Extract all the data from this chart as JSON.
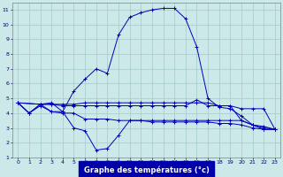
{
  "bg_color": "#cce8e8",
  "grid_color": "#aacece",
  "line_color": "#0000bb",
  "xlabel": "Graphe des températures (°c)",
  "xlim": [
    -0.5,
    23.5
  ],
  "ylim": [
    1,
    11.5
  ],
  "xticks": [
    0,
    1,
    2,
    3,
    4,
    5,
    6,
    7,
    8,
    9,
    10,
    11,
    12,
    13,
    14,
    15,
    16,
    17,
    18,
    19,
    20,
    21,
    22,
    23
  ],
  "yticks": [
    1,
    2,
    3,
    4,
    5,
    6,
    7,
    8,
    9,
    10,
    11
  ],
  "series": [
    {
      "x": [
        0,
        1,
        2,
        3,
        4,
        5,
        6,
        7,
        8,
        9,
        10,
        11,
        12,
        13,
        14,
        15,
        16,
        17,
        18,
        19,
        20,
        21,
        22,
        23
      ],
      "y": [
        4.7,
        4.0,
        4.6,
        4.7,
        4.1,
        5.5,
        6.3,
        7.0,
        6.7,
        9.3,
        10.5,
        10.8,
        11.0,
        11.1,
        11.1,
        10.4,
        8.5,
        5.0,
        4.4,
        4.3,
        3.8,
        3.2,
        2.9,
        2.9
      ],
      "marker": true
    },
    {
      "x": [
        0,
        2,
        3,
        4,
        5,
        6,
        7,
        8,
        9,
        10,
        11,
        12,
        13,
        14,
        15,
        16,
        17,
        18,
        19,
        20,
        21,
        22,
        23
      ],
      "y": [
        4.7,
        4.6,
        4.6,
        4.6,
        4.6,
        4.7,
        4.7,
        4.7,
        4.7,
        4.7,
        4.7,
        4.7,
        4.7,
        4.7,
        4.7,
        4.7,
        4.7,
        4.5,
        4.5,
        4.3,
        4.3,
        4.3,
        2.9
      ],
      "marker": true
    },
    {
      "x": [
        0,
        2,
        3,
        4,
        5,
        6,
        7,
        8,
        9,
        10,
        11,
        12,
        13,
        14,
        15,
        16,
        17,
        18,
        19,
        20,
        21,
        22,
        23
      ],
      "y": [
        4.7,
        4.6,
        4.6,
        4.5,
        4.5,
        4.5,
        4.5,
        4.5,
        4.5,
        4.5,
        4.5,
        4.5,
        4.5,
        4.5,
        4.5,
        4.9,
        4.5,
        4.5,
        4.5,
        3.5,
        3.2,
        3.1,
        2.9
      ],
      "marker": true
    },
    {
      "x": [
        0,
        1,
        2,
        3,
        4,
        5,
        6,
        7,
        8,
        9,
        10,
        11,
        12,
        13,
        14,
        15,
        16,
        17,
        18,
        19,
        20,
        21,
        22,
        23
      ],
      "y": [
        4.7,
        4.0,
        4.5,
        4.1,
        4.0,
        4.0,
        3.6,
        3.6,
        3.6,
        3.5,
        3.5,
        3.5,
        3.5,
        3.5,
        3.5,
        3.5,
        3.5,
        3.5,
        3.5,
        3.5,
        3.5,
        3.2,
        3.0,
        2.9
      ],
      "marker": true
    },
    {
      "x": [
        0,
        1,
        2,
        3,
        4,
        5,
        6,
        7,
        8,
        9,
        10,
        11,
        12,
        13,
        14,
        15,
        16,
        17,
        18,
        19,
        20,
        21,
        22,
        23
      ],
      "y": [
        4.7,
        4.0,
        4.6,
        4.1,
        4.1,
        3.0,
        2.8,
        1.5,
        1.6,
        2.5,
        3.5,
        3.5,
        3.4,
        3.4,
        3.4,
        3.4,
        3.4,
        3.4,
        3.3,
        3.3,
        3.2,
        3.0,
        2.9,
        2.9
      ],
      "marker": true
    }
  ]
}
